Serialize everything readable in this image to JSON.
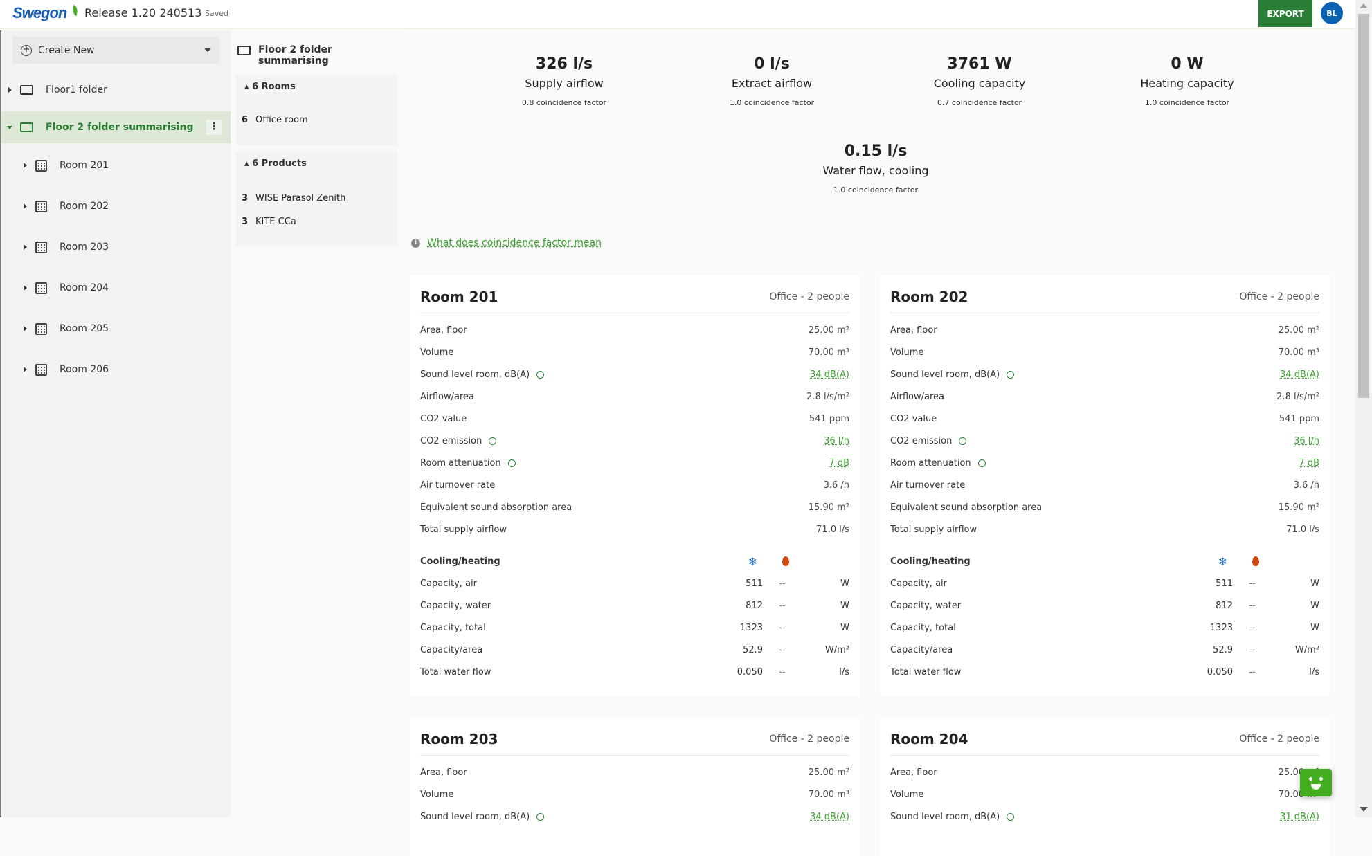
{
  "header": {
    "brand": "Swegon",
    "release": "Release 1.20 240513",
    "status": "Saved",
    "export_label": "EXPORT",
    "avatar_initials": "BL"
  },
  "colors": {
    "accent": "#2a7d35",
    "link": "#3aa02c",
    "brand": "#1a5fb4",
    "cooling": "#1c6cc0",
    "heating": "#d04a10"
  },
  "sidebar": {
    "create_label": "Create New",
    "folders": [
      {
        "label": "Floor1 folder"
      },
      {
        "label": "Floor 2 folder summarising"
      }
    ],
    "rooms": [
      "Room 201",
      "Room 202",
      "Room 203",
      "Room 204",
      "Room 205",
      "Room 206"
    ]
  },
  "middle": {
    "title": "Floor 2 folder summarising",
    "rooms_header": "6 Rooms",
    "rooms": [
      {
        "count": "6",
        "name": "Office room"
      }
    ],
    "products_header": "6 Products",
    "products": [
      {
        "count": "3",
        "name": "WISE Parasol Zenith"
      },
      {
        "count": "3",
        "name": "KITE CCa"
      }
    ]
  },
  "summary": [
    {
      "value": "326 l/s",
      "label": "Supply airflow",
      "factor": "0.8 coincidence factor"
    },
    {
      "value": "0 l/s",
      "label": "Extract airflow",
      "factor": "1.0 coincidence factor"
    },
    {
      "value": "3761 W",
      "label": "Cooling capacity",
      "factor": "0.7 coincidence factor"
    },
    {
      "value": "0 W",
      "label": "Heating capacity",
      "factor": "1.0 coincidence factor"
    },
    {
      "value": "0.15 l/s",
      "label": "Water flow, cooling",
      "factor": "1.0 coincidence factor"
    }
  ],
  "info_link": "What does coincidence factor mean",
  "cards": [
    {
      "title": "Room 201",
      "type": "Office - 2 people",
      "rows": [
        {
          "label": "Area, floor",
          "value": "25.00 m²"
        },
        {
          "label": "Volume",
          "value": "70.00 m³"
        },
        {
          "label": "Sound level room, dB(A)",
          "value": "34 dB(A)",
          "help": true
        },
        {
          "label": "Airflow/area",
          "value": "2.8 l/s/m²"
        },
        {
          "label": "CO2 value",
          "value": "541 ppm"
        },
        {
          "label": "CO2 emission",
          "value": "36 l/h",
          "help": true
        },
        {
          "label": "Room attenuation",
          "value": "7 dB",
          "help": true
        },
        {
          "label": "Air turnover rate",
          "value": "3.6 /h"
        },
        {
          "label": "Equivalent sound absorption area",
          "value": "15.90 m²"
        },
        {
          "label": "Total supply airflow",
          "value": "71.0 l/s"
        }
      ],
      "ch_title": "Cooling/heating",
      "ch": [
        {
          "label": "Capacity, air",
          "cool": "511",
          "heat": "--",
          "unit": "W"
        },
        {
          "label": "Capacity, water",
          "cool": "812",
          "heat": "--",
          "unit": "W"
        },
        {
          "label": "Capacity, total",
          "cool": "1323",
          "heat": "--",
          "unit": "W"
        },
        {
          "label": "Capacity/area",
          "cool": "52.9",
          "heat": "--",
          "unit": "W/m²"
        },
        {
          "label": "Total water flow",
          "cool": "0.050",
          "heat": "--",
          "unit": "l/s"
        }
      ]
    },
    {
      "title": "Room 202",
      "type": "Office - 2 people",
      "rows": [
        {
          "label": "Area, floor",
          "value": "25.00 m²"
        },
        {
          "label": "Volume",
          "value": "70.00 m³"
        },
        {
          "label": "Sound level room, dB(A)",
          "value": "34 dB(A)",
          "help": true
        },
        {
          "label": "Airflow/area",
          "value": "2.8 l/s/m²"
        },
        {
          "label": "CO2 value",
          "value": "541 ppm"
        },
        {
          "label": "CO2 emission",
          "value": "36 l/h",
          "help": true
        },
        {
          "label": "Room attenuation",
          "value": "7 dB",
          "help": true
        },
        {
          "label": "Air turnover rate",
          "value": "3.6 /h"
        },
        {
          "label": "Equivalent sound absorption area",
          "value": "15.90 m²"
        },
        {
          "label": "Total supply airflow",
          "value": "71.0 l/s"
        }
      ],
      "ch_title": "Cooling/heating",
      "ch": [
        {
          "label": "Capacity, air",
          "cool": "511",
          "heat": "--",
          "unit": "W"
        },
        {
          "label": "Capacity, water",
          "cool": "812",
          "heat": "--",
          "unit": "W"
        },
        {
          "label": "Capacity, total",
          "cool": "1323",
          "heat": "--",
          "unit": "W"
        },
        {
          "label": "Capacity/area",
          "cool": "52.9",
          "heat": "--",
          "unit": "W/m²"
        },
        {
          "label": "Total water flow",
          "cool": "0.050",
          "heat": "--",
          "unit": "l/s"
        }
      ]
    },
    {
      "title": "Room 203",
      "type": "Office - 2 people",
      "rows": [
        {
          "label": "Area, floor",
          "value": "25.00 m²"
        },
        {
          "label": "Volume",
          "value": "70.00 m³"
        },
        {
          "label": "Sound level room, dB(A)",
          "value": "34 dB(A)",
          "help": true
        }
      ]
    },
    {
      "title": "Room 204",
      "type": "Office - 2 people",
      "rows": [
        {
          "label": "Area, floor",
          "value": "25.00 m²"
        },
        {
          "label": "Volume",
          "value": "70.00 m³"
        },
        {
          "label": "Sound level room, dB(A)",
          "value": "31 dB(A)",
          "help": true
        }
      ]
    }
  ]
}
